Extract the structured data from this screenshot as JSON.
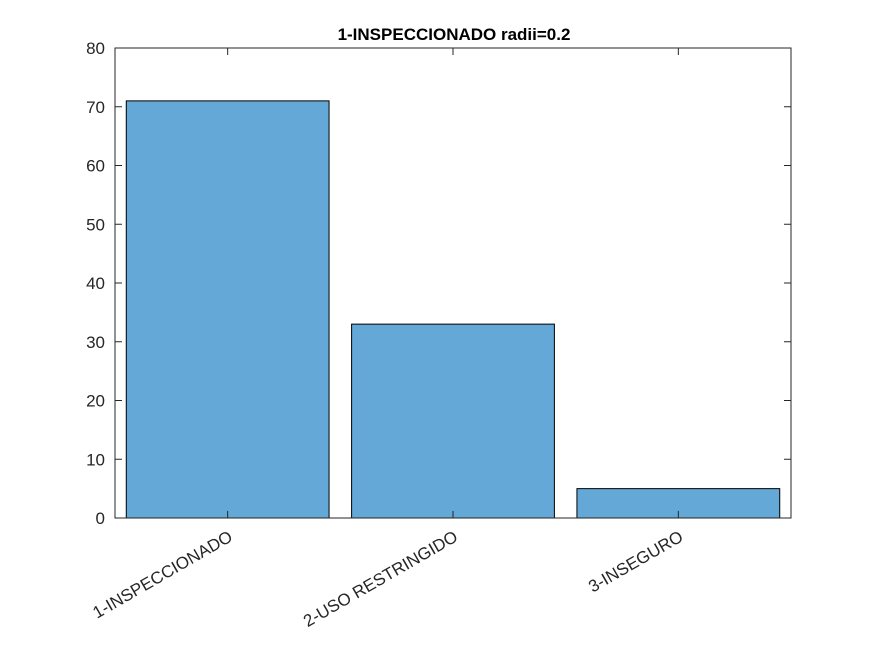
{
  "chart_data": {
    "type": "bar",
    "title": "1-INSPECCIONADO radii=0.2",
    "categories": [
      "1-INSPECCIONADO",
      "2-USO RESTRINGIDO",
      "3-INSEGURO"
    ],
    "values": [
      71,
      33,
      5
    ],
    "xlabel": "",
    "ylabel": "",
    "ylim": [
      0,
      80
    ],
    "yticks": [
      0,
      10,
      20,
      30,
      40,
      50,
      60,
      70,
      80
    ],
    "grid": false,
    "legend": "none",
    "bar_color": "#63A8D6",
    "edge_color": "#000000",
    "axis_color": "#262626"
  }
}
